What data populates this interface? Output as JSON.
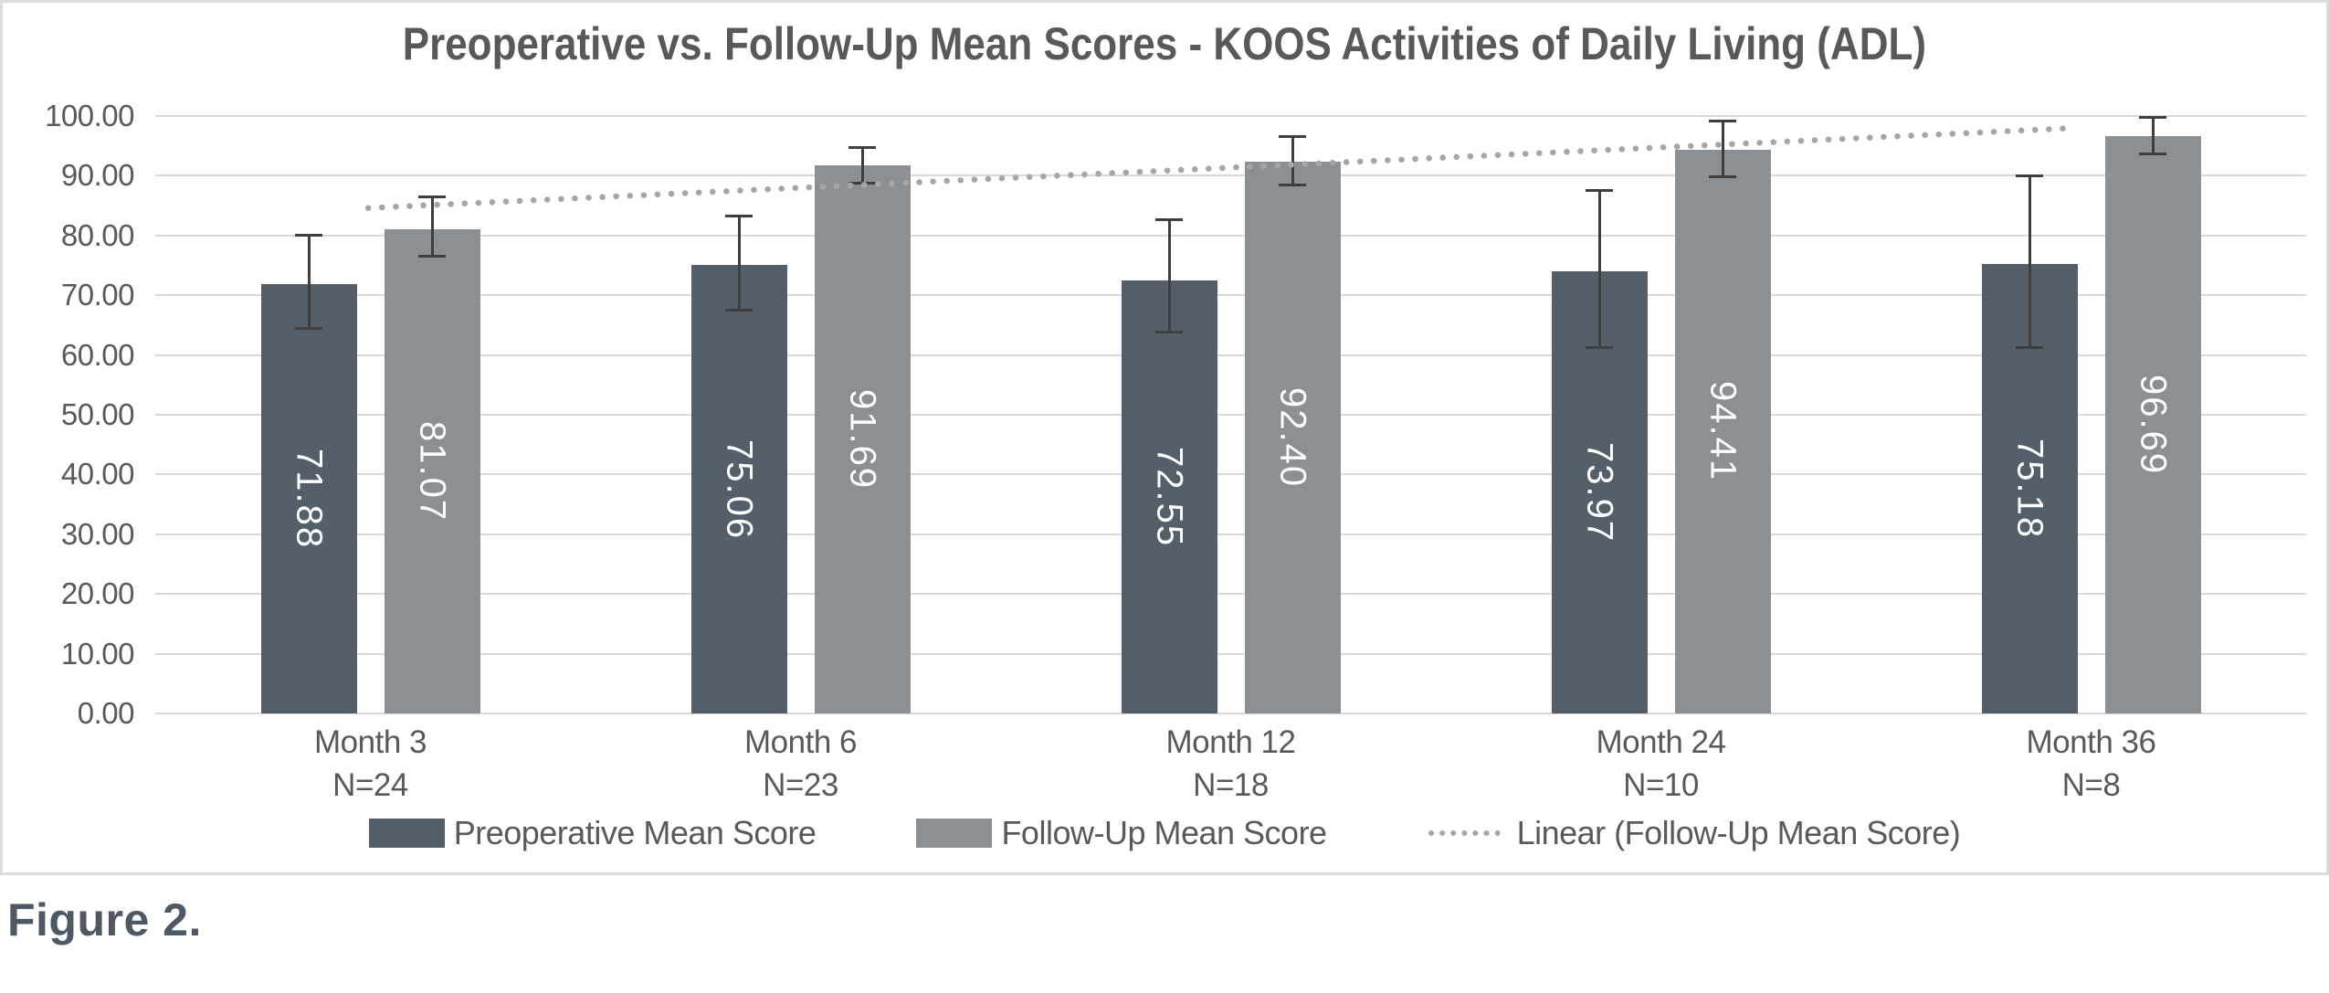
{
  "figure_caption": "Figure 2.",
  "chart_data": {
    "type": "bar",
    "title": "Preoperative vs. Follow-Up Mean Scores - KOOS Activities of Daily Living (ADL)",
    "categories": [
      "Month 3",
      "Month 6",
      "Month 12",
      "Month 24",
      "Month 36"
    ],
    "category_sublabels": [
      "N=24",
      "N=23",
      "N=18",
      "N=10",
      "N=8"
    ],
    "series": [
      {
        "name": "Preoperative Mean Score",
        "color": "#545f69",
        "values": [
          71.88,
          75.06,
          72.55,
          73.97,
          75.18
        ],
        "error_high": [
          80.0,
          83.3,
          82.7,
          87.6,
          90.0
        ],
        "error_low": [
          64.4,
          67.5,
          63.8,
          61.3,
          61.3
        ]
      },
      {
        "name": "Follow-Up Mean Score",
        "color": "#8a9094",
        "values": [
          81.07,
          91.69,
          92.4,
          94.41,
          96.69
        ],
        "error_high": [
          86.4,
          94.8,
          96.5,
          99.2,
          99.8
        ],
        "error_low": [
          76.5,
          88.8,
          88.5,
          89.8,
          93.6
        ]
      }
    ],
    "trendline": {
      "name": "Linear (Follow-Up Mean Score)",
      "color": "#a6a6a6",
      "style": "dotted",
      "y_start": 84.6,
      "y_end": 98.0,
      "x_start_frac": 0.099,
      "x_end_frac": 0.893
    },
    "ylim": [
      0,
      100
    ],
    "ytick_step": 10,
    "ytick_labels": [
      "0.00",
      "10.00",
      "20.00",
      "30.00",
      "40.00",
      "50.00",
      "60.00",
      "70.00",
      "80.00",
      "90.00",
      "100.00"
    ],
    "grid": true,
    "legend_position": "bottom",
    "value_label_decimals": 2,
    "value_label_color": "#ffffff",
    "grid_color": "#d9d9d9",
    "error_bar_color": "#3f3f3f",
    "text_color": "#595959"
  }
}
